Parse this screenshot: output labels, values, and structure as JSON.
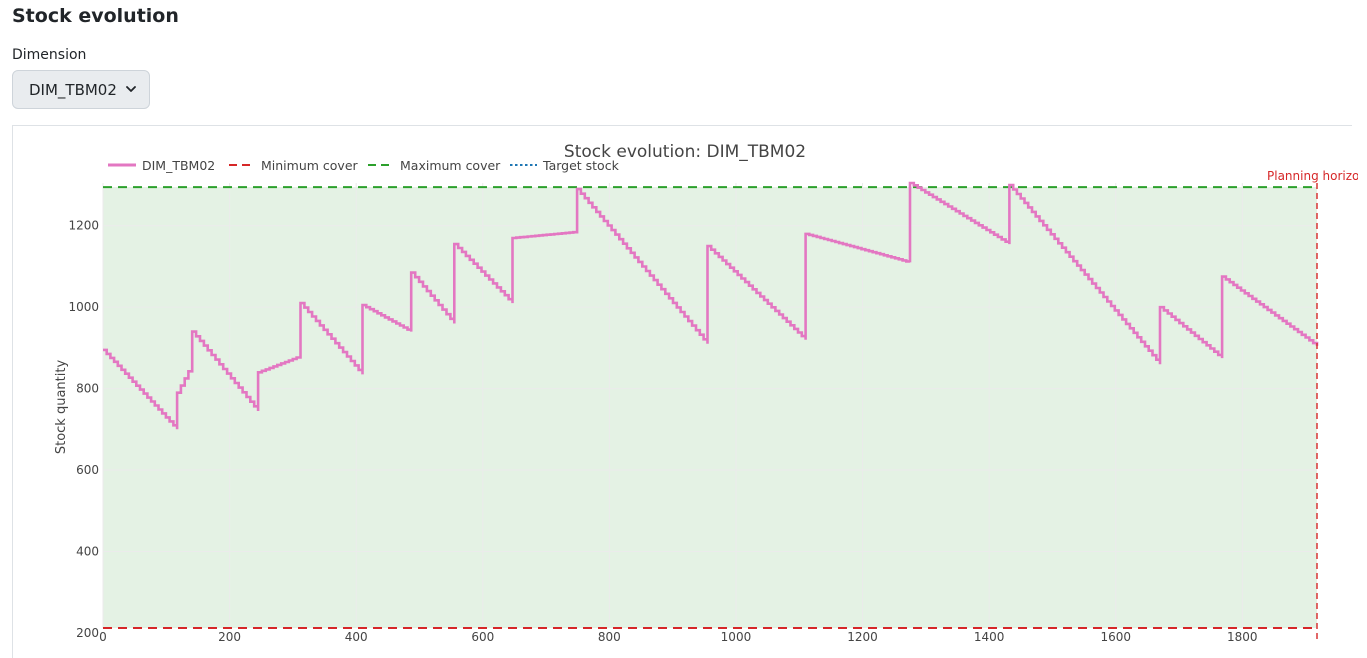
{
  "page": {
    "title": "Stock evolution"
  },
  "dimension": {
    "label": "Dimension",
    "selected": "DIM_TBM02"
  },
  "chart_data": {
    "type": "line",
    "title": "Stock evolution: DIM_TBM02",
    "xlabel": "",
    "ylabel": "Stock quantity",
    "xlim": [
      0,
      1918
    ],
    "ylim": [
      212,
      1305
    ],
    "x_ticks": [
      0,
      200,
      400,
      600,
      800,
      1000,
      1200,
      1400,
      1600,
      1800
    ],
    "y_ticks": [
      200,
      400,
      600,
      800,
      1000,
      1200
    ],
    "grid": true,
    "legend_position": "top-left",
    "colors": {
      "stock": "#e377c2",
      "min": "#d62728",
      "max": "#2ca02c",
      "target": "#1f77b4",
      "band": "#e4f2e4",
      "horizon": "#d62728"
    },
    "series": [
      {
        "name": "DIM_TBM02",
        "style": "step",
        "x": [
          0,
          117,
          117,
          141,
          141,
          245,
          245,
          312,
          312,
          410,
          410,
          487,
          487,
          555,
          555,
          647,
          647,
          749,
          749,
          955,
          955,
          1110,
          1110,
          1275,
          1275,
          1432,
          1432,
          1670,
          1670,
          1768,
          1768,
          1918
        ],
        "y": [
          895,
          700,
          790,
          860,
          940,
          745,
          840,
          880,
          1010,
          835,
          1005,
          940,
          1085,
          960,
          1155,
          1010,
          1170,
          1185,
          1290,
          910,
          1150,
          920,
          1180,
          1110,
          1305,
          1155,
          1300,
          860,
          1000,
          875,
          1075,
          905
        ]
      },
      {
        "name": "Minimum cover",
        "style": "dash",
        "value": 212
      },
      {
        "name": "Maximum cover",
        "style": "dash",
        "value": 1295
      },
      {
        "name": "Target stock",
        "style": "dot"
      }
    ],
    "annotations": [
      {
        "text": "Planning horizon",
        "x": 1918
      }
    ]
  }
}
